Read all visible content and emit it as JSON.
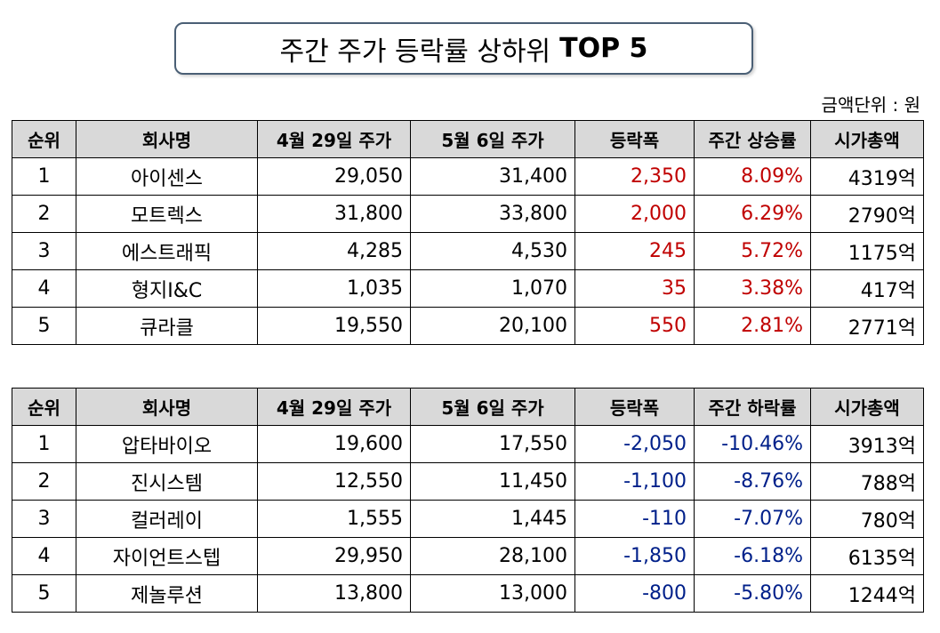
{
  "title": {
    "main": "주간 주가 등락률 상하위",
    "suffix": "TOP 5"
  },
  "unit_note": "금액단위 : 원",
  "colors": {
    "positive": "#c00000",
    "negative": "#00208a",
    "header_bg": "#d9d9d9"
  },
  "gainers": {
    "headers": [
      "순위",
      "회사명",
      "4월 29일 주가",
      "5월 6일 주가",
      "등락폭",
      "주간 상승률",
      "시가총액"
    ],
    "rows": [
      [
        "1",
        "아이센스",
        "29,050",
        "31,400",
        "2,350",
        "8.09%",
        "4319억"
      ],
      [
        "2",
        "모트렉스",
        "31,800",
        "33,800",
        "2,000",
        "6.29%",
        "2790억"
      ],
      [
        "3",
        "에스트래픽",
        "4,285",
        "4,530",
        "245",
        "5.72%",
        "1175억"
      ],
      [
        "4",
        "형지I&C",
        "1,035",
        "1,070",
        "35",
        "3.38%",
        "417억"
      ],
      [
        "5",
        "큐라클",
        "19,550",
        "20,100",
        "550",
        "2.81%",
        "2771억"
      ]
    ]
  },
  "losers": {
    "headers": [
      "순위",
      "회사명",
      "4월 29일 주가",
      "5월 6일 주가",
      "등락폭",
      "주간 하락률",
      "시가총액"
    ],
    "rows": [
      [
        "1",
        "압타바이오",
        "19,600",
        "17,550",
        "-2,050",
        "-10.46%",
        "3913억"
      ],
      [
        "2",
        "진시스템",
        "12,550",
        "11,450",
        "-1,100",
        "-8.76%",
        "788억"
      ],
      [
        "3",
        "컬러레이",
        "1,555",
        "1,445",
        "-110",
        "-7.07%",
        "780억"
      ],
      [
        "4",
        "자이언트스텝",
        "29,950",
        "28,100",
        "-1,850",
        "-6.18%",
        "6135억"
      ],
      [
        "5",
        "제놀루션",
        "13,800",
        "13,000",
        "-800",
        "-5.80%",
        "1244억"
      ]
    ]
  }
}
